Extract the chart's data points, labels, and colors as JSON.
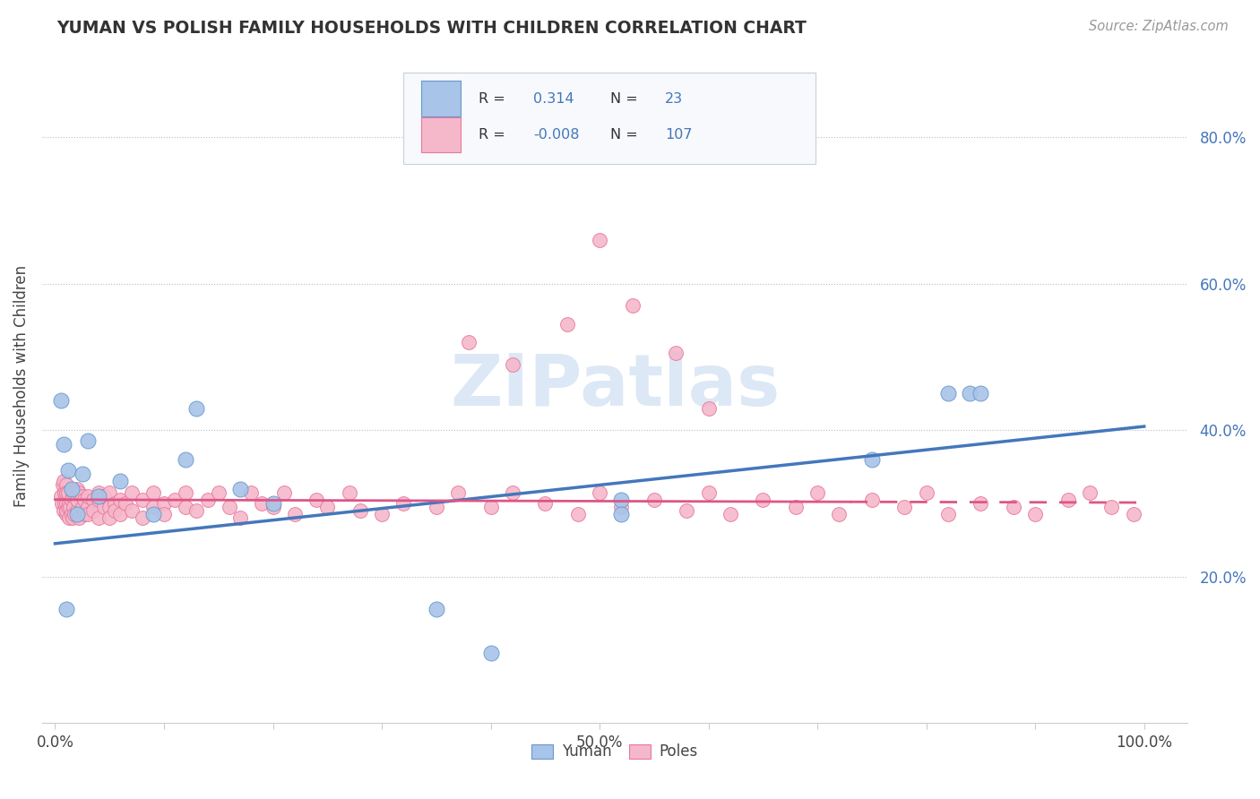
{
  "title": "YUMAN VS POLISH FAMILY HOUSEHOLDS WITH CHILDREN CORRELATION CHART",
  "source": "Source: ZipAtlas.com",
  "ylabel": "Family Households with Children",
  "ytick_labels": [
    "20.0%",
    "40.0%",
    "60.0%",
    "80.0%"
  ],
  "ytick_vals": [
    0.2,
    0.4,
    0.6,
    0.8
  ],
  "yuman_color": "#a8c4e8",
  "poles_color": "#f5b8cb",
  "yuman_edge_color": "#6699cc",
  "poles_edge_color": "#e8789a",
  "yuman_line_color": "#4477bb",
  "poles_line_color": "#dd5588",
  "watermark_color": "#dce8f5",
  "legend_box_color": "#f0f4fa",
  "legend_border_color": "#cccccc",
  "r_value_color": "#4477bb",
  "n_value_color": "#4477bb",
  "ytick_color": "#4477bb",
  "yuman_x": [
    0.005,
    0.008,
    0.01,
    0.012,
    0.015,
    0.02,
    0.025,
    0.03,
    0.04,
    0.06,
    0.09,
    0.12,
    0.13,
    0.17,
    0.2,
    0.35,
    0.4,
    0.52,
    0.52,
    0.75,
    0.82,
    0.84,
    0.85
  ],
  "yuman_y": [
    0.44,
    0.38,
    0.155,
    0.345,
    0.32,
    0.285,
    0.34,
    0.385,
    0.31,
    0.33,
    0.285,
    0.36,
    0.43,
    0.32,
    0.3,
    0.155,
    0.095,
    0.305,
    0.285,
    0.36,
    0.45,
    0.45,
    0.45
  ],
  "poles_x": [
    0.005,
    0.006,
    0.007,
    0.008,
    0.008,
    0.009,
    0.009,
    0.01,
    0.01,
    0.01,
    0.01,
    0.01,
    0.012,
    0.012,
    0.013,
    0.013,
    0.014,
    0.015,
    0.015,
    0.016,
    0.016,
    0.017,
    0.017,
    0.018,
    0.02,
    0.02,
    0.02,
    0.022,
    0.022,
    0.025,
    0.025,
    0.027,
    0.027,
    0.03,
    0.03,
    0.03,
    0.035,
    0.035,
    0.04,
    0.04,
    0.04,
    0.045,
    0.045,
    0.05,
    0.05,
    0.05,
    0.055,
    0.055,
    0.06,
    0.06,
    0.065,
    0.07,
    0.07,
    0.08,
    0.08,
    0.09,
    0.09,
    0.1,
    0.1,
    0.11,
    0.12,
    0.12,
    0.13,
    0.14,
    0.15,
    0.16,
    0.17,
    0.18,
    0.19,
    0.2,
    0.21,
    0.22,
    0.24,
    0.25,
    0.27,
    0.28,
    0.3,
    0.32,
    0.35,
    0.37,
    0.4,
    0.42,
    0.45,
    0.48,
    0.5,
    0.52,
    0.55,
    0.58,
    0.6,
    0.62,
    0.65,
    0.68,
    0.7,
    0.72,
    0.75,
    0.78,
    0.8,
    0.82,
    0.85,
    0.88,
    0.9,
    0.93,
    0.95,
    0.97,
    0.99,
    0.38,
    0.42,
    0.47,
    0.5,
    0.53,
    0.57,
    0.6
  ],
  "poles_y": [
    0.31,
    0.3,
    0.325,
    0.29,
    0.33,
    0.315,
    0.3,
    0.325,
    0.3,
    0.315,
    0.285,
    0.29,
    0.295,
    0.315,
    0.3,
    0.28,
    0.295,
    0.305,
    0.285,
    0.31,
    0.28,
    0.295,
    0.315,
    0.285,
    0.32,
    0.29,
    0.305,
    0.28,
    0.315,
    0.295,
    0.31,
    0.285,
    0.305,
    0.295,
    0.31,
    0.285,
    0.305,
    0.29,
    0.315,
    0.28,
    0.305,
    0.295,
    0.31,
    0.295,
    0.315,
    0.28,
    0.3,
    0.29,
    0.305,
    0.285,
    0.3,
    0.315,
    0.29,
    0.305,
    0.28,
    0.295,
    0.315,
    0.3,
    0.285,
    0.305,
    0.295,
    0.315,
    0.29,
    0.305,
    0.315,
    0.295,
    0.28,
    0.315,
    0.3,
    0.295,
    0.315,
    0.285,
    0.305,
    0.295,
    0.315,
    0.29,
    0.285,
    0.3,
    0.295,
    0.315,
    0.295,
    0.315,
    0.3,
    0.285,
    0.315,
    0.295,
    0.305,
    0.29,
    0.315,
    0.285,
    0.305,
    0.295,
    0.315,
    0.285,
    0.305,
    0.295,
    0.315,
    0.285,
    0.3,
    0.295,
    0.285,
    0.305,
    0.315,
    0.295,
    0.285,
    0.52,
    0.49,
    0.545,
    0.66,
    0.57,
    0.505,
    0.43
  ],
  "yuman_reg": [
    0.0,
    1.0,
    0.245,
    0.405
  ],
  "poles_reg_solid": [
    0.0,
    0.73,
    0.305,
    0.302
  ],
  "poles_reg_dash": [
    0.73,
    1.0,
    0.302,
    0.301
  ]
}
